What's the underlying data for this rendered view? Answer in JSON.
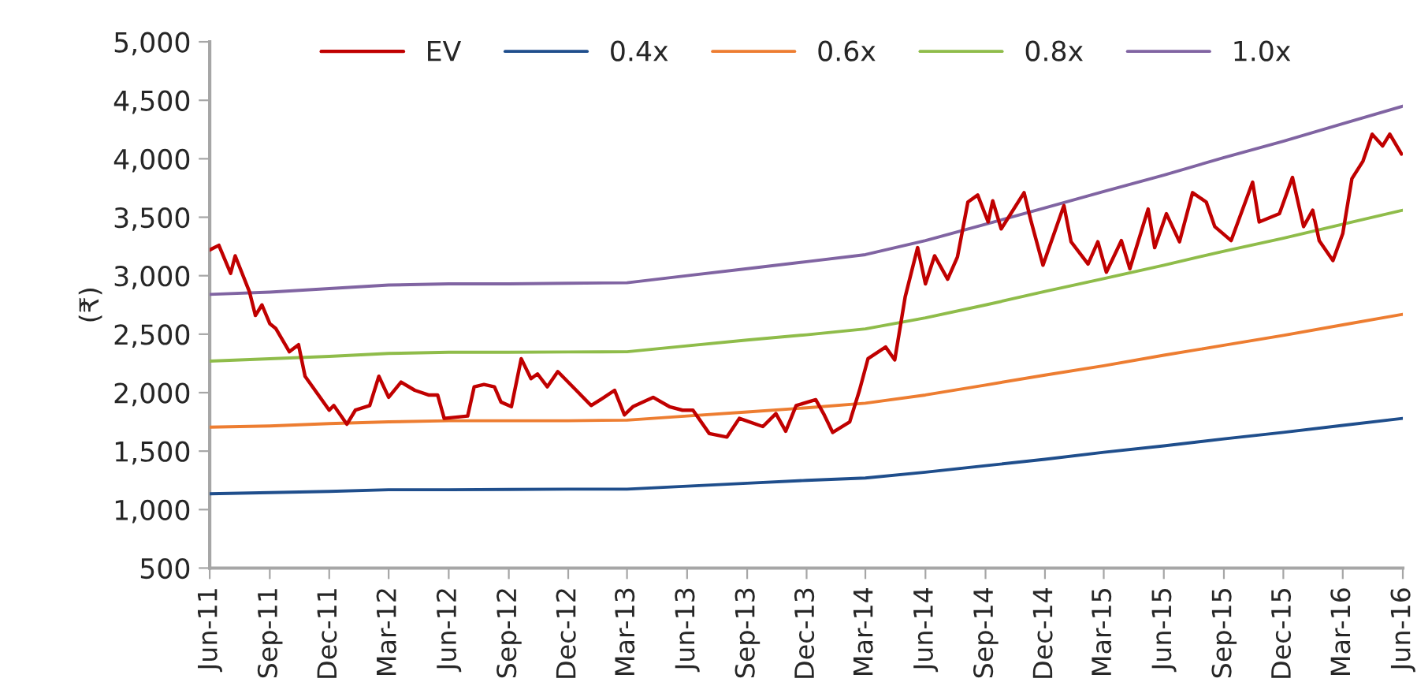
{
  "chart_data": {
    "type": "line",
    "ylabel": "(₹)",
    "legend": "top",
    "grid": false,
    "marker": "none",
    "line_style": "solid",
    "ylim": [
      500,
      5000
    ],
    "yticks": [
      {
        "value": 500,
        "label": "500"
      },
      {
        "value": 1000,
        "label": "1,000"
      },
      {
        "value": 1500,
        "label": "1,500"
      },
      {
        "value": 2000,
        "label": "2,000"
      },
      {
        "value": 2500,
        "label": "2,500"
      },
      {
        "value": 3000,
        "label": "3,000"
      },
      {
        "value": 3500,
        "label": "3,500"
      },
      {
        "value": 4000,
        "label": "4,000"
      },
      {
        "value": 4500,
        "label": "4,500"
      },
      {
        "value": 5000,
        "label": "5,000"
      }
    ],
    "xlim": [
      "2011-06-01",
      "2016-06-01"
    ],
    "xticks": [
      {
        "value": "2011-06-01",
        "label": "Jun-11"
      },
      {
        "value": "2011-09-01",
        "label": "Sep-11"
      },
      {
        "value": "2011-12-01",
        "label": "Dec-11"
      },
      {
        "value": "2012-03-01",
        "label": "Mar-12"
      },
      {
        "value": "2012-06-01",
        "label": "Jun-12"
      },
      {
        "value": "2012-09-01",
        "label": "Sep-12"
      },
      {
        "value": "2012-12-01",
        "label": "Dec-12"
      },
      {
        "value": "2013-03-01",
        "label": "Mar-13"
      },
      {
        "value": "2013-06-01",
        "label": "Jun-13"
      },
      {
        "value": "2013-09-01",
        "label": "Sep-13"
      },
      {
        "value": "2013-12-01",
        "label": "Dec-13"
      },
      {
        "value": "2014-03-01",
        "label": "Mar-14"
      },
      {
        "value": "2014-06-01",
        "label": "Jun-14"
      },
      {
        "value": "2014-09-01",
        "label": "Sep-14"
      },
      {
        "value": "2014-12-01",
        "label": "Dec-14"
      },
      {
        "value": "2015-03-01",
        "label": "Mar-15"
      },
      {
        "value": "2015-06-01",
        "label": "Jun-15"
      },
      {
        "value": "2015-09-01",
        "label": "Sep-15"
      },
      {
        "value": "2015-12-01",
        "label": "Dec-15"
      },
      {
        "value": "2016-03-01",
        "label": "Mar-16"
      },
      {
        "value": "2016-06-01",
        "label": "Jun-16"
      }
    ],
    "series": [
      {
        "name": "EV",
        "color": "#c00000",
        "x": [
          "2011-06-01",
          "2011-06-15",
          "2011-07-03",
          "2011-07-10",
          "2011-08-01",
          "2011-08-10",
          "2011-08-20",
          "2011-09-01",
          "2011-09-10",
          "2011-10-01",
          "2011-10-15",
          "2011-10-25",
          "2011-12-01",
          "2011-12-08",
          "2011-12-28",
          "2012-01-10",
          "2012-02-01",
          "2012-02-15",
          "2012-03-01",
          "2012-03-20",
          "2012-04-10",
          "2012-05-01",
          "2012-05-15",
          "2012-05-25",
          "2012-06-30",
          "2012-07-10",
          "2012-07-25",
          "2012-08-10",
          "2012-08-20",
          "2012-09-05",
          "2012-09-20",
          "2012-10-05",
          "2012-10-15",
          "2012-10-30",
          "2012-11-15",
          "2012-12-15",
          "2013-01-05",
          "2013-01-25",
          "2013-02-10",
          "2013-02-25",
          "2013-03-10",
          "2013-04-10",
          "2013-05-05",
          "2013-05-25",
          "2013-06-10",
          "2013-07-05",
          "2013-08-01",
          "2013-08-20",
          "2013-09-25",
          "2013-10-15",
          "2013-10-30",
          "2013-11-15",
          "2013-12-15",
          "2013-12-28",
          "2014-01-10",
          "2014-02-05",
          "2014-02-20",
          "2014-03-05",
          "2014-04-01",
          "2014-04-15",
          "2014-05-01",
          "2014-05-20",
          "2014-06-01",
          "2014-06-15",
          "2014-07-05",
          "2014-07-20",
          "2014-08-05",
          "2014-08-20",
          "2014-09-05",
          "2014-09-12",
          "2014-09-25",
          "2014-10-30",
          "2014-11-10",
          "2014-11-28",
          "2014-12-30",
          "2015-01-10",
          "2015-02-05",
          "2015-02-20",
          "2015-03-05",
          "2015-03-28",
          "2015-04-10",
          "2015-05-08",
          "2015-05-18",
          "2015-06-05",
          "2015-06-25",
          "2015-07-15",
          "2015-08-05",
          "2015-08-18",
          "2015-09-12",
          "2015-10-15",
          "2015-10-25",
          "2015-11-25",
          "2015-12-15",
          "2016-01-01",
          "2016-01-15",
          "2016-01-25",
          "2016-02-15",
          "2016-03-01",
          "2016-03-15",
          "2016-04-01",
          "2016-04-15",
          "2016-05-01",
          "2016-05-12",
          "2016-05-30"
        ],
        "values": [
          3220,
          3260,
          3020,
          3170,
          2860,
          2660,
          2750,
          2590,
          2550,
          2350,
          2410,
          2140,
          1850,
          1890,
          1730,
          1850,
          1890,
          2140,
          1960,
          2090,
          2020,
          1980,
          1980,
          1780,
          1800,
          2050,
          2070,
          2050,
          1920,
          1880,
          2290,
          2120,
          2160,
          2050,
          2180,
          2010,
          1890,
          1960,
          2020,
          1810,
          1880,
          1960,
          1880,
          1850,
          1850,
          1650,
          1620,
          1780,
          1710,
          1820,
          1670,
          1890,
          1940,
          1810,
          1660,
          1750,
          2020,
          2290,
          2390,
          2280,
          2820,
          3240,
          2930,
          3170,
          2970,
          3160,
          3630,
          3690,
          3460,
          3640,
          3400,
          3710,
          3460,
          3090,
          3600,
          3290,
          3100,
          3290,
          3030,
          3300,
          3060,
          3570,
          3240,
          3530,
          3290,
          3710,
          3630,
          3420,
          3300,
          3800,
          3460,
          3530,
          3840,
          3420,
          3560,
          3300,
          3130,
          3360,
          3830,
          3980,
          4210,
          4110,
          4210,
          4040
        ]
      },
      {
        "name": "0.4x",
        "color": "#1f4e8c",
        "values": [
          1135,
          1145,
          1155,
          1170,
          1170,
          1172,
          1175,
          1175,
          1200,
          1225,
          1250,
          1270,
          1320,
          1375,
          1430,
          1490,
          1545,
          1605,
          1660,
          1720,
          1780
        ]
      },
      {
        "name": "0.6x",
        "color": "#ed7d31",
        "values": [
          1705,
          1715,
          1735,
          1750,
          1760,
          1760,
          1760,
          1765,
          1800,
          1835,
          1870,
          1910,
          1980,
          2065,
          2150,
          2230,
          2320,
          2405,
          2490,
          2580,
          2670
        ]
      },
      {
        "name": "0.8x",
        "color": "#8fbc4a",
        "values": [
          2270,
          2290,
          2310,
          2335,
          2345,
          2345,
          2348,
          2350,
          2400,
          2450,
          2495,
          2545,
          2640,
          2750,
          2865,
          2975,
          3090,
          3210,
          3320,
          3440,
          3560
        ]
      },
      {
        "name": "1.0x",
        "color": "#8064a2",
        "values": [
          2840,
          2860,
          2890,
          2920,
          2930,
          2930,
          2935,
          2940,
          3000,
          3060,
          3120,
          3180,
          3300,
          3440,
          3580,
          3720,
          3860,
          4010,
          4150,
          4300,
          4450
        ]
      }
    ],
    "x": [
      "2011-06",
      "2011-09",
      "2011-12",
      "2012-03",
      "2012-06",
      "2012-09",
      "2012-12",
      "2013-03",
      "2013-06",
      "2013-09",
      "2013-12",
      "2014-03",
      "2014-06",
      "2014-09",
      "2014-12",
      "2015-03",
      "2015-06",
      "2015-09",
      "2015-12",
      "2016-03",
      "2016-06"
    ]
  }
}
